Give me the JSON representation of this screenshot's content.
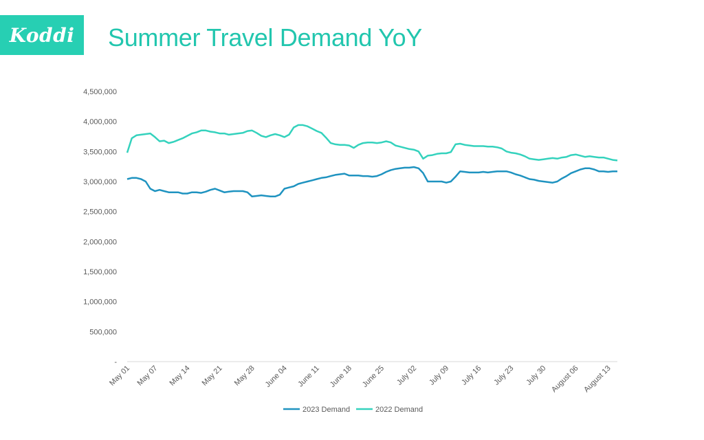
{
  "brand": {
    "logo_text": "Koddi",
    "color": "#27cfb3"
  },
  "title": "Summer Travel Demand YoY",
  "chart_data": {
    "type": "line",
    "title": "Summer Travel Demand YoY",
    "xlabel": "",
    "ylabel": "",
    "ylim": [
      0,
      4500000
    ],
    "y_ticks": [
      0,
      500000,
      1000000,
      1500000,
      2000000,
      2500000,
      3000000,
      3500000,
      4000000,
      4500000
    ],
    "y_tick_labels": [
      "-",
      "500,000",
      "1,000,000",
      "1,500,000",
      "2,000,000",
      "2,500,000",
      "3,000,000",
      "3,500,000",
      "4,000,000",
      "4,500,000"
    ],
    "x_ticks": [
      "May 01",
      "May 07",
      "May 14",
      "May 21",
      "May 28",
      "June 04",
      "June 11",
      "June 18",
      "June 25",
      "July 02",
      "July 09",
      "July 16",
      "July 23",
      "July 30",
      "August 06",
      "August 13"
    ],
    "x_tick_index": [
      0,
      6,
      13,
      20,
      27,
      34,
      41,
      48,
      55,
      62,
      69,
      76,
      83,
      90,
      97,
      104
    ],
    "grid": false,
    "legend_position": "bottom",
    "series": [
      {
        "name": "2023 Demand",
        "color": "#1f93c0",
        "values": [
          3040000,
          3060000,
          3060000,
          3040000,
          3000000,
          2880000,
          2840000,
          2860000,
          2840000,
          2820000,
          2820000,
          2820000,
          2800000,
          2800000,
          2820000,
          2820000,
          2810000,
          2830000,
          2860000,
          2880000,
          2850000,
          2820000,
          2830000,
          2840000,
          2840000,
          2840000,
          2820000,
          2750000,
          2760000,
          2770000,
          2760000,
          2750000,
          2750000,
          2780000,
          2880000,
          2900000,
          2920000,
          2960000,
          2980000,
          3000000,
          3020000,
          3040000,
          3060000,
          3070000,
          3090000,
          3110000,
          3120000,
          3130000,
          3100000,
          3100000,
          3100000,
          3090000,
          3090000,
          3080000,
          3090000,
          3120000,
          3160000,
          3190000,
          3210000,
          3220000,
          3230000,
          3230000,
          3240000,
          3220000,
          3140000,
          3000000,
          3000000,
          3000000,
          3000000,
          2980000,
          3000000,
          3080000,
          3170000,
          3160000,
          3150000,
          3150000,
          3150000,
          3160000,
          3150000,
          3160000,
          3170000,
          3170000,
          3170000,
          3150000,
          3120000,
          3100000,
          3070000,
          3040000,
          3030000,
          3010000,
          3000000,
          2990000,
          2980000,
          3000000,
          3050000,
          3090000,
          3140000,
          3170000,
          3200000,
          3220000,
          3220000,
          3200000,
          3170000,
          3170000,
          3160000,
          3170000,
          3170000
        ]
      },
      {
        "name": "2022 Demand",
        "color": "#34d2bd",
        "values": [
          3480000,
          3720000,
          3770000,
          3780000,
          3790000,
          3800000,
          3740000,
          3670000,
          3680000,
          3640000,
          3660000,
          3690000,
          3720000,
          3760000,
          3800000,
          3820000,
          3850000,
          3850000,
          3830000,
          3820000,
          3800000,
          3800000,
          3780000,
          3790000,
          3800000,
          3810000,
          3840000,
          3850000,
          3810000,
          3760000,
          3740000,
          3770000,
          3790000,
          3770000,
          3740000,
          3780000,
          3900000,
          3940000,
          3940000,
          3920000,
          3880000,
          3840000,
          3810000,
          3730000,
          3640000,
          3620000,
          3610000,
          3610000,
          3600000,
          3560000,
          3610000,
          3640000,
          3650000,
          3650000,
          3640000,
          3650000,
          3670000,
          3650000,
          3600000,
          3580000,
          3560000,
          3540000,
          3530000,
          3500000,
          3380000,
          3430000,
          3440000,
          3460000,
          3470000,
          3470000,
          3490000,
          3620000,
          3630000,
          3610000,
          3600000,
          3590000,
          3590000,
          3590000,
          3580000,
          3580000,
          3570000,
          3550000,
          3500000,
          3480000,
          3470000,
          3450000,
          3420000,
          3380000,
          3370000,
          3360000,
          3370000,
          3380000,
          3390000,
          3380000,
          3400000,
          3410000,
          3440000,
          3450000,
          3430000,
          3410000,
          3420000,
          3410000,
          3400000,
          3400000,
          3380000,
          3360000,
          3350000
        ]
      }
    ]
  }
}
